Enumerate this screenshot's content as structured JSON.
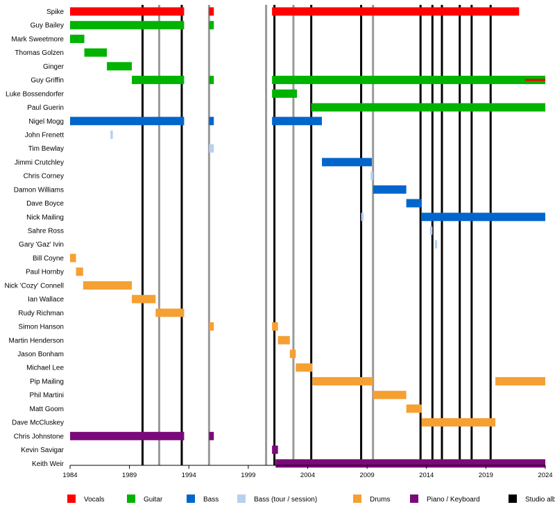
{
  "chart_data": {
    "type": "timeline",
    "x_range": [
      1984,
      2024
    ],
    "x_ticks": [
      "1984",
      "1989",
      "1994",
      "1999",
      "2004",
      "2009",
      "2014",
      "2019",
      "2024"
    ],
    "colors": {
      "Vocals": "#ff0000",
      "Guitar": "#00b300",
      "Bass": "#0066cc",
      "Bass (tour / session)": "#b8d0f0",
      "Drums": "#f5a033",
      "Piano / Keyboard": "#7a0a7a",
      "Studio album": "#000000",
      "Other release": "#999999"
    },
    "legend": [
      {
        "key": "Vocals",
        "label": "Vocals"
      },
      {
        "key": "Guitar",
        "label": "Guitar"
      },
      {
        "key": "Bass",
        "label": "Bass"
      },
      {
        "key": "Bass (tour / session)",
        "label": "Bass (tour / session)"
      },
      {
        "key": "Drums",
        "label": "Drums"
      },
      {
        "key": "Piano / Keyboard",
        "label": "Piano / Keyboard"
      },
      {
        "key": "Studio album",
        "label": "Studio alb"
      }
    ],
    "studio_albums": [
      1990.1,
      1993.4,
      2001.2,
      2004.3,
      2008.5,
      2013.5,
      2014.5,
      2015.3,
      2016.8,
      2017.8,
      2019.4
    ],
    "other_releases": [
      1991.5,
      1995.7,
      2000.5,
      2002.8,
      2009.5
    ],
    "members": [
      {
        "name": "Spike",
        "bars": [
          {
            "role": "Vocals",
            "start": 1984.0,
            "end": 1993.6
          },
          {
            "role": "Vocals",
            "start": 1995.7,
            "end": 1996.1
          },
          {
            "role": "Vocals",
            "start": 2001.0,
            "end": 2021.8
          }
        ]
      },
      {
        "name": "Guy Bailey",
        "bars": [
          {
            "role": "Guitar",
            "start": 1984.0,
            "end": 1993.6
          },
          {
            "role": "Guitar",
            "start": 1995.7,
            "end": 1996.1
          }
        ]
      },
      {
        "name": "Mark Sweetmore",
        "bars": [
          {
            "role": "Guitar",
            "start": 1984.0,
            "end": 1985.2
          }
        ]
      },
      {
        "name": "Thomas Golzen",
        "bars": [
          {
            "role": "Guitar",
            "start": 1985.2,
            "end": 1987.1
          }
        ]
      },
      {
        "name": "Ginger",
        "bars": [
          {
            "role": "Guitar",
            "start": 1987.1,
            "end": 1989.2
          }
        ]
      },
      {
        "name": "Guy Griffin",
        "bars": [
          {
            "role": "Guitar",
            "start": 1989.2,
            "end": 1993.6
          },
          {
            "role": "Guitar",
            "start": 1995.7,
            "end": 1996.1
          },
          {
            "role": "Guitar",
            "start": 2001.0,
            "end": 2024.0
          },
          {
            "role": "Vocals",
            "start": 2022.3,
            "end": 2024.0,
            "thin": true
          }
        ]
      },
      {
        "name": "Luke Bossendorfer",
        "bars": [
          {
            "role": "Guitar",
            "start": 2001.0,
            "end": 2003.1
          }
        ]
      },
      {
        "name": "Paul Guerin",
        "bars": [
          {
            "role": "Guitar",
            "start": 2004.3,
            "end": 2024.0
          }
        ]
      },
      {
        "name": "Nigel Mogg",
        "bars": [
          {
            "role": "Bass",
            "start": 1984.0,
            "end": 1993.6
          },
          {
            "role": "Bass",
            "start": 1995.7,
            "end": 1996.1
          },
          {
            "role": "Bass",
            "start": 2001.0,
            "end": 2005.2
          }
        ]
      },
      {
        "name": "John Frenett",
        "bars": [
          {
            "role": "Bass (tour / session)",
            "start": 1987.4,
            "end": 1987.6
          }
        ]
      },
      {
        "name": "Tim Bewlay",
        "bars": [
          {
            "role": "Bass (tour / session)",
            "start": 1995.7,
            "end": 1996.1
          }
        ]
      },
      {
        "name": "Jimmi Crutchley",
        "bars": [
          {
            "role": "Bass",
            "start": 2005.2,
            "end": 2009.4
          }
        ]
      },
      {
        "name": "Chris Corney",
        "bars": [
          {
            "role": "Bass (tour / session)",
            "start": 2009.3,
            "end": 2009.5
          }
        ]
      },
      {
        "name": "Damon Williams",
        "bars": [
          {
            "role": "Bass",
            "start": 2009.5,
            "end": 2012.3
          }
        ]
      },
      {
        "name": "Dave Boyce",
        "bars": [
          {
            "role": "Bass",
            "start": 2012.3,
            "end": 2013.6
          }
        ]
      },
      {
        "name": "Nick Mailing",
        "bars": [
          {
            "role": "Bass (tour / session)",
            "start": 2008.5,
            "end": 2008.7
          },
          {
            "role": "Bass",
            "start": 2013.6,
            "end": 2024.0
          }
        ]
      },
      {
        "name": "Sahre Ross",
        "bars": [
          {
            "role": "Bass (tour / session)",
            "start": 2014.3,
            "end": 2014.5
          }
        ]
      },
      {
        "name": "Gary 'Gaz' Ivin",
        "bars": [
          {
            "role": "Bass (tour / session)",
            "start": 2014.7,
            "end": 2014.9
          }
        ]
      },
      {
        "name": "Bill Coyne",
        "bars": [
          {
            "role": "Drums",
            "start": 1984.0,
            "end": 1984.5
          }
        ]
      },
      {
        "name": "Paul Hornby",
        "bars": [
          {
            "role": "Drums",
            "start": 1984.5,
            "end": 1985.1
          }
        ]
      },
      {
        "name": "Nick 'Cozy' Connell",
        "bars": [
          {
            "role": "Drums",
            "start": 1985.1,
            "end": 1989.2
          }
        ]
      },
      {
        "name": "Ian Wallace",
        "bars": [
          {
            "role": "Drums",
            "start": 1989.2,
            "end": 1991.2
          }
        ]
      },
      {
        "name": "Rudy Richman",
        "bars": [
          {
            "role": "Drums",
            "start": 1991.2,
            "end": 1993.6
          }
        ]
      },
      {
        "name": "Simon Hanson",
        "bars": [
          {
            "role": "Drums",
            "start": 1995.7,
            "end": 1996.1
          },
          {
            "role": "Drums",
            "start": 2001.0,
            "end": 2001.5
          }
        ]
      },
      {
        "name": "Martin Henderson",
        "bars": [
          {
            "role": "Drums",
            "start": 2001.5,
            "end": 2002.5
          }
        ]
      },
      {
        "name": "Jason Bonham",
        "bars": [
          {
            "role": "Drums",
            "start": 2002.5,
            "end": 2003.0
          }
        ]
      },
      {
        "name": "Michael Lee",
        "bars": [
          {
            "role": "Drums",
            "start": 2003.0,
            "end": 2004.4
          }
        ]
      },
      {
        "name": "Pip Mailing",
        "bars": [
          {
            "role": "Drums",
            "start": 2004.4,
            "end": 2009.5
          },
          {
            "role": "Drums",
            "start": 2019.8,
            "end": 2024.0
          }
        ]
      },
      {
        "name": "Phil Martini",
        "bars": [
          {
            "role": "Drums",
            "start": 2009.5,
            "end": 2012.3
          }
        ]
      },
      {
        "name": "Matt Goom",
        "bars": [
          {
            "role": "Drums",
            "start": 2012.3,
            "end": 2013.6
          }
        ]
      },
      {
        "name": "Dave McCluskey",
        "bars": [
          {
            "role": "Drums",
            "start": 2013.6,
            "end": 2019.8
          }
        ]
      },
      {
        "name": "Chris Johnstone",
        "bars": [
          {
            "role": "Piano / Keyboard",
            "start": 1984.0,
            "end": 1993.6
          },
          {
            "role": "Piano / Keyboard",
            "start": 1995.7,
            "end": 1996.1
          }
        ]
      },
      {
        "name": "Kevin Savigar",
        "bars": [
          {
            "role": "Piano / Keyboard",
            "start": 2001.0,
            "end": 2001.5
          }
        ]
      },
      {
        "name": "Keith Weir",
        "bars": [
          {
            "role": "Piano / Keyboard",
            "start": 2001.3,
            "end": 2024.0
          }
        ]
      }
    ]
  }
}
